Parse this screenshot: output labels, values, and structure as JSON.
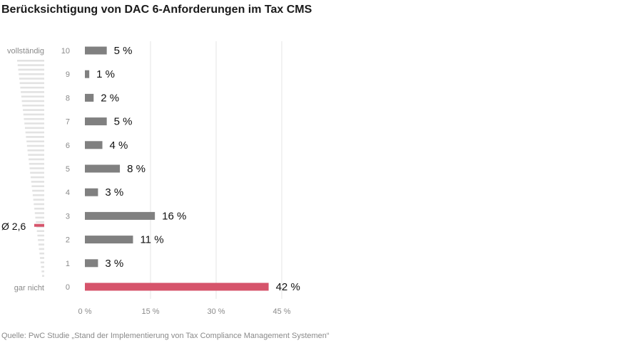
{
  "title": "Berücksichtigung von DAC 6-Anforderungen im Tax CMS",
  "source": "Quelle: PwC Studie „Stand der Implementierung von Tax Compliance Management Systemen“",
  "scale_labels": {
    "top": "vollständig",
    "bottom": "gar nicht"
  },
  "average_label": "Ø 2,6",
  "colors": {
    "bar": "#808080",
    "highlight": "#d6546b",
    "grid": "#e4e4e4",
    "scale": "#e2e2e2"
  },
  "chart_data": {
    "type": "bar",
    "orientation": "horizontal",
    "categories": [
      "10",
      "9",
      "8",
      "7",
      "6",
      "5",
      "4",
      "3",
      "2",
      "1",
      "0"
    ],
    "values": [
      5,
      1,
      2,
      5,
      4,
      8,
      3,
      16,
      11,
      3,
      42
    ],
    "value_labels": [
      "5 %",
      "1 %",
      "2 %",
      "5 %",
      "4 %",
      "8 %",
      "3 %",
      "16 %",
      "11 %",
      "3 %",
      "42 %"
    ],
    "highlight_category": "0",
    "xlim": [
      0,
      45
    ],
    "xticks": [
      0,
      15,
      30,
      45
    ],
    "xtick_labels": [
      "0 %",
      "15 %",
      "30 %",
      "45 %"
    ],
    "average": 2.6,
    "grid": true
  }
}
